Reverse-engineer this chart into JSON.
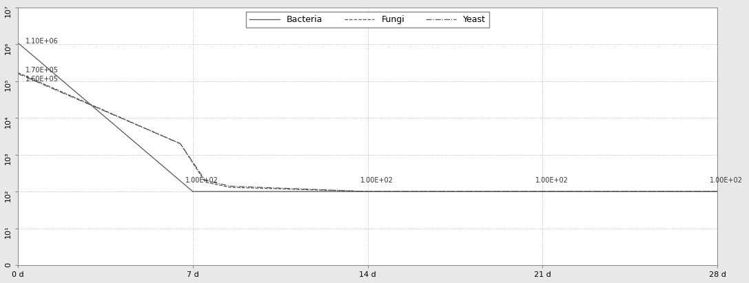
{
  "x_ticks": [
    0,
    7,
    14,
    21,
    28
  ],
  "x_tick_labels": [
    "0 d",
    "7 d",
    "14 d",
    "21 d",
    "28 d"
  ],
  "xlim": [
    0,
    28
  ],
  "ylim_log_min": 1,
  "ylim_log_max": 10000000.0,
  "bacteria_x": [
    0,
    7,
    14,
    21,
    28
  ],
  "bacteria_y": [
    1100000,
    100,
    100,
    100,
    100
  ],
  "fungi_x": [
    0,
    6.5,
    7.5,
    8.5,
    14,
    21,
    28
  ],
  "fungi_y": [
    170000,
    2000,
    180,
    130,
    100,
    100,
    100
  ],
  "yeast_x": [
    0,
    6.5,
    7.5,
    8.5,
    14,
    21,
    28
  ],
  "yeast_y": [
    160000,
    2000,
    200,
    140,
    100,
    100,
    100
  ],
  "bacteria_label": "1.10E+06",
  "fungi_label": "1.70E+05",
  "yeast_label": "1.60E+05",
  "flat_label": "1.00E+02",
  "flat_label_xpositions": [
    7,
    14,
    21,
    28
  ],
  "bacteria_linestyle": "-",
  "fungi_linestyle": "--",
  "yeast_linestyle": "-.",
  "line_color": "#555555",
  "legend_bacteria": "Bacteria",
  "legend_fungi": "Fungi",
  "legend_yeast": "Yeast",
  "fig_facecolor": "#e8e8e8",
  "ax_facecolor": "#ffffff",
  "grid_color": "#aaaaaa",
  "annotation_fontsize": 7,
  "tick_fontsize": 8,
  "legend_fontsize": 9,
  "ytick_labels": [
    "0",
    "10¹",
    "10²",
    "10³",
    "10⁴",
    "10⁵",
    "10⁶",
    "10⁷"
  ]
}
